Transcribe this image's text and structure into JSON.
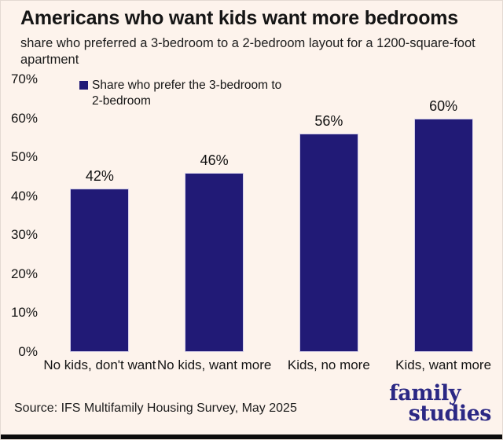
{
  "page": {
    "title": "Americans who want kids want more bedrooms",
    "subtitle": "share who preferred a 3-bedroom to a 2-bedroom layout for a 1200-square-foot apartment",
    "source": "Source: IFS Multifamily Housing Survey, May 2025",
    "logo": {
      "line1": "family",
      "line2": "studies"
    }
  },
  "colors": {
    "background": "#fdf3ec",
    "bar_fill": "#211a76",
    "bar_outline": "#d4cfe9",
    "text": "#141414",
    "logo_text": "#2b2884",
    "bottom_strip": "#0c0c0c"
  },
  "chart_data": {
    "type": "bar",
    "title": "Americans who want kids want more bedrooms",
    "subtitle": "share who preferred a 3-bedroom to a 2-bedroom layout for a 1200-square-foot apartment",
    "categories": [
      "No kids, don't want",
      "No kids, want more",
      "Kids, no more",
      "Kids, want more"
    ],
    "values": [
      42,
      46,
      56,
      60
    ],
    "value_labels": [
      "42%",
      "46%",
      "56%",
      "60%"
    ],
    "legend": [
      "Share who prefer the 3-bedroom to 2-bedroom"
    ],
    "legend_position": "top-left",
    "legend_marker": "square",
    "xlabel": "",
    "ylabel": "",
    "ylim": [
      0,
      70
    ],
    "yticks": [
      0,
      10,
      20,
      30,
      40,
      50,
      60,
      70
    ],
    "ytick_labels": [
      "0%",
      "10%",
      "20%",
      "30%",
      "40%",
      "50%",
      "60%",
      "70%"
    ],
    "grid": false,
    "bar_color": "#211a76",
    "source": "Source: IFS Multifamily Housing Survey, May 2025"
  }
}
